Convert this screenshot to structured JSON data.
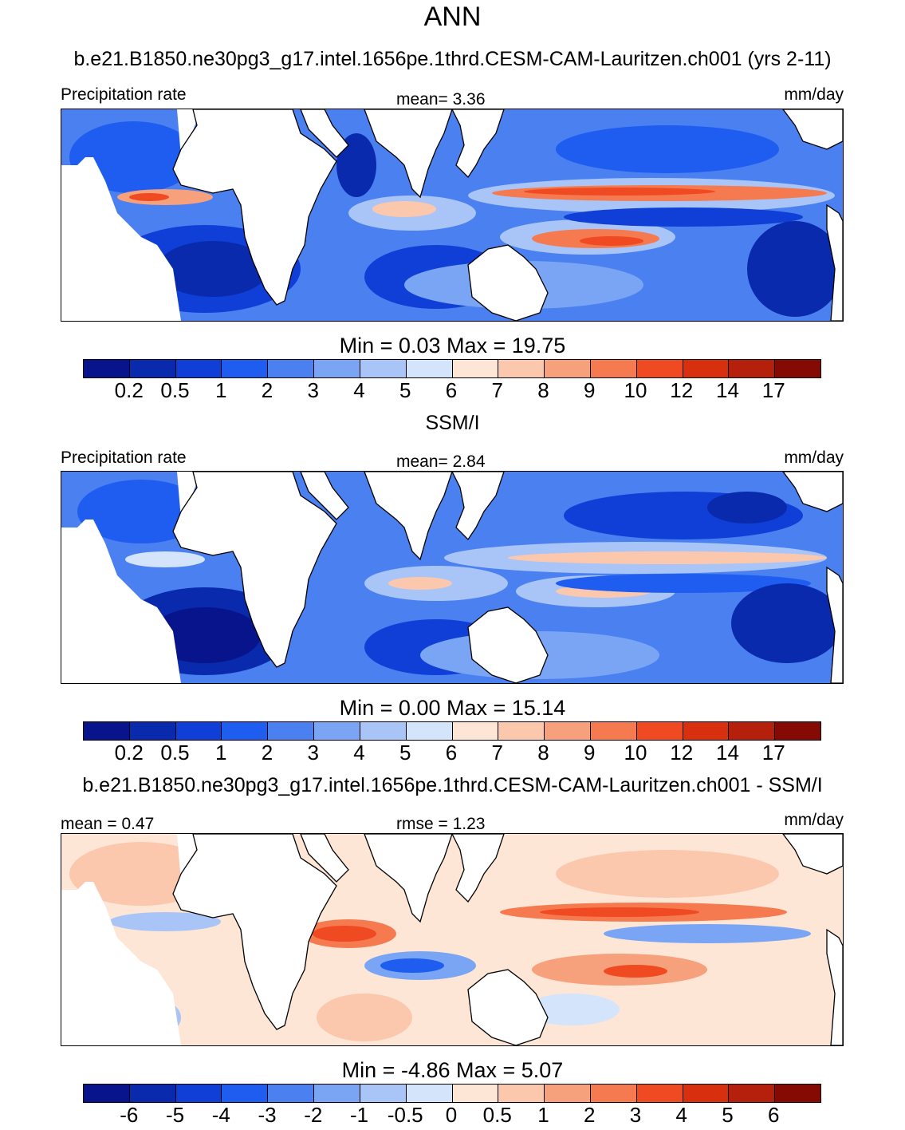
{
  "title": "ANN",
  "colors": {
    "palette": [
      "#08148c",
      "#0a2aae",
      "#0f3fd6",
      "#1f5cf0",
      "#4a80f0",
      "#7aa4f4",
      "#a9c4f7",
      "#d4e4fb",
      "#fde6d6",
      "#fbc8ae",
      "#f7a07c",
      "#f57a4f",
      "#f04a22",
      "#d8300e",
      "#b4200c",
      "#860a04"
    ],
    "land": "#ffffff",
    "coast": "#000000"
  },
  "panels": [
    {
      "id": "model",
      "title": "b.e21.B1850.ne30pg3_g17.intel.1656pe.1thrd.CESM-CAM-Lauritzen.ch001 (yrs 2-11)",
      "left_label": "Precipitation rate",
      "center_label": "mean=   3.36",
      "right_label": "mm/day",
      "minmax": "Min =   0.03 Max =  19.75",
      "ticks": [
        "0.2",
        "0.5",
        "1",
        "2",
        "3",
        "4",
        "5",
        "6",
        "7",
        "8",
        "9",
        "10",
        "12",
        "14",
        "17"
      ]
    },
    {
      "id": "obs",
      "title": "SSM/I",
      "left_label": "Precipitation rate",
      "center_label": "mean=   2.84",
      "right_label": "mm/day",
      "minmax": "Min =   0.00 Max =  15.14",
      "ticks": [
        "0.2",
        "0.5",
        "1",
        "2",
        "3",
        "4",
        "5",
        "6",
        "7",
        "8",
        "9",
        "10",
        "12",
        "14",
        "17"
      ]
    },
    {
      "id": "diff",
      "title": "b.e21.B1850.ne30pg3_g17.intel.1656pe.1thrd.CESM-CAM-Lauritzen.ch001 - SSM/I",
      "left_label": "mean =   0.47",
      "center_label": "rmse =   1.23",
      "right_label": "mm/day",
      "minmax": "Min =  -4.86 Max =   5.07",
      "ticks": [
        "-6",
        "-5",
        "-4",
        "-3",
        "-2",
        "-1",
        "-0.5",
        "0",
        "0.5",
        "1",
        "2",
        "3",
        "4",
        "5",
        "6"
      ]
    }
  ],
  "map_features": [
    "africa",
    "arabia",
    "india",
    "southeast-asia",
    "australia",
    "americas-east",
    "south-america-east"
  ]
}
